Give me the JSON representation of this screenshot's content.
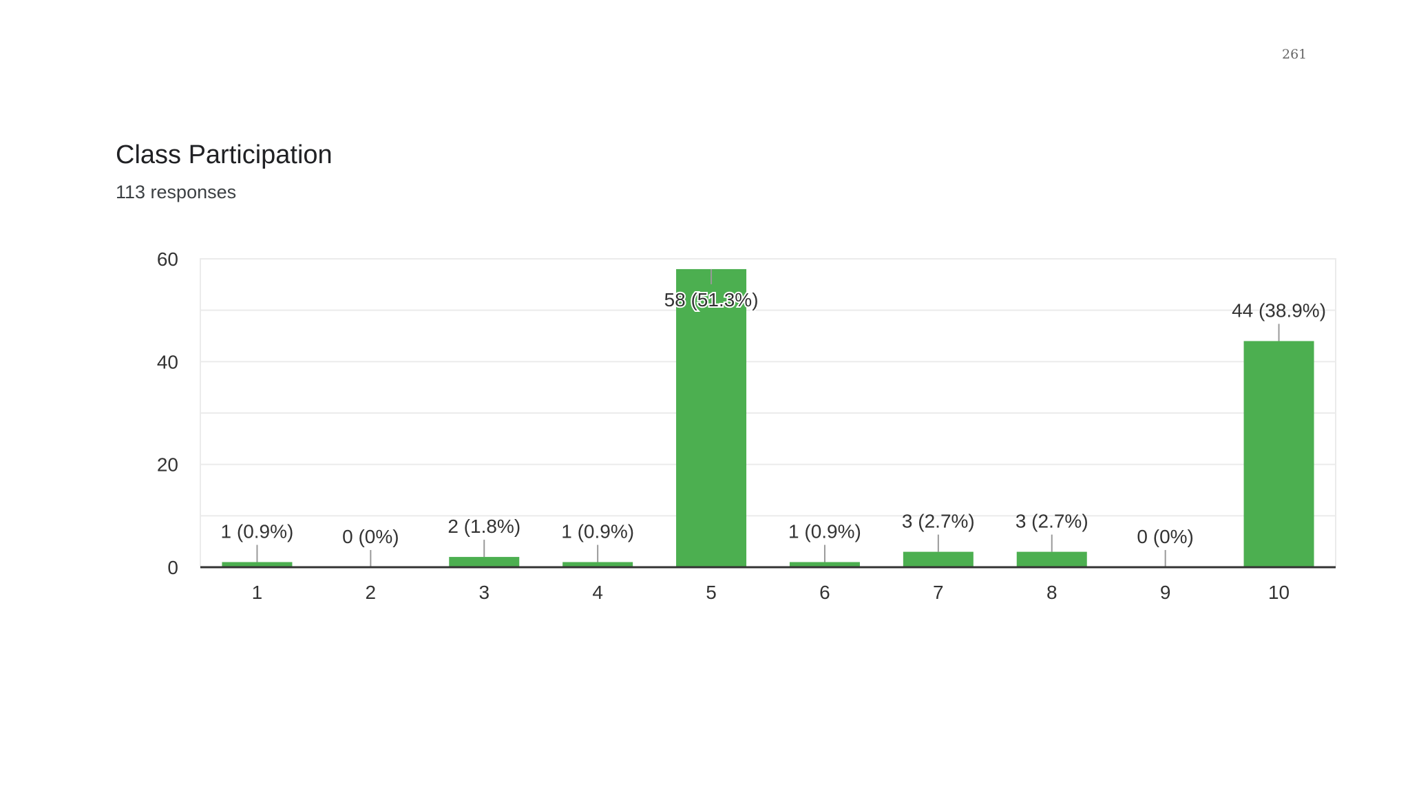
{
  "page": {
    "page_number": "261"
  },
  "chart_data": {
    "type": "bar",
    "title": "Class Participation",
    "subtitle": "113 responses",
    "categories": [
      "1",
      "2",
      "3",
      "4",
      "5",
      "6",
      "7",
      "8",
      "9",
      "10"
    ],
    "values": [
      1,
      0,
      2,
      1,
      58,
      1,
      3,
      3,
      0,
      44
    ],
    "data_labels": [
      "1 (0.9%)",
      "0 (0%)",
      "2 (1.8%)",
      "1 (0.9%)",
      "58 (51.3%)",
      "1 (0.9%)",
      "3 (2.7%)",
      "3 (2.7%)",
      "0 (0%)",
      "44 (38.9%)"
    ],
    "y_ticks": [
      0,
      20,
      40,
      60
    ],
    "ylim": [
      0,
      60
    ],
    "xlabel": "",
    "ylabel": "",
    "grid": true,
    "bar_color": "#4caf50",
    "axis_color": "#333333",
    "grid_color": "#ebebeb"
  }
}
